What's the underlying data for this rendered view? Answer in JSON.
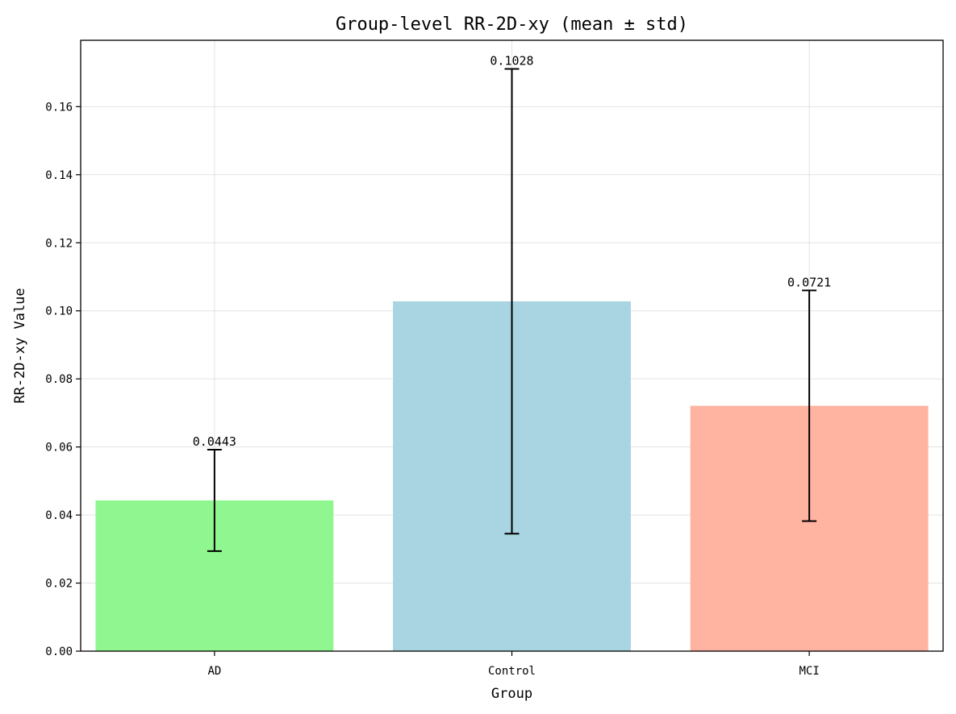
{
  "chart_data": {
    "type": "bar",
    "title": "Group-level RR-2D-xy (mean ± std)",
    "xlabel": "Group",
    "ylabel": "RR-2D-xy Value",
    "categories": [
      "AD",
      "Control",
      "MCI"
    ],
    "values": [
      0.0443,
      0.1028,
      0.0721
    ],
    "errors": [
      0.0149,
      0.0683,
      0.0339
    ],
    "value_labels": [
      "0.0443",
      "0.1028",
      "0.0721"
    ],
    "colors": [
      "#90f790",
      "#a9d5e3",
      "#ffb3a1"
    ],
    "ylim": [
      0,
      0.1795
    ],
    "yticks": [
      0.0,
      0.02,
      0.04,
      0.06,
      0.08,
      0.1,
      0.12,
      0.14,
      0.16
    ],
    "ytick_labels": [
      "0.00",
      "0.02",
      "0.04",
      "0.06",
      "0.08",
      "0.10",
      "0.12",
      "0.14",
      "0.16"
    ],
    "grid": true,
    "legend": "none"
  }
}
